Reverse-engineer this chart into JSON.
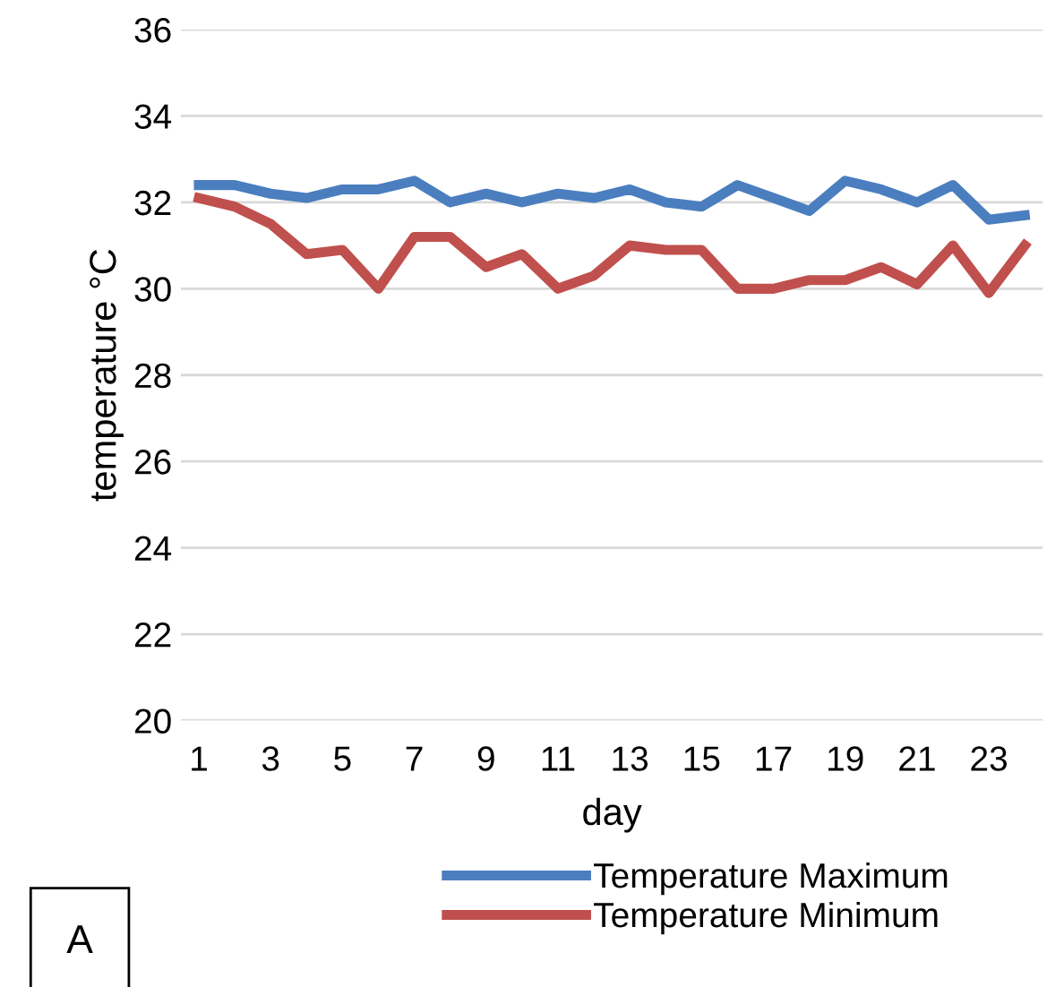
{
  "chart_data": {
    "type": "line",
    "categories": [
      "1",
      null,
      "3",
      null,
      "5",
      null,
      "7",
      null,
      "9",
      null,
      "11",
      null,
      "13",
      null,
      "15",
      null,
      "17",
      null,
      "19",
      null,
      "21",
      null,
      "23",
      null
    ],
    "series": [
      {
        "name": "Temperature Maximum",
        "color": "#4a7ebf",
        "values": [
          32.4,
          32.4,
          32.2,
          32.1,
          32.3,
          32.3,
          32.5,
          32.0,
          32.2,
          32.0,
          32.2,
          32.1,
          32.3,
          32.0,
          31.9,
          32.4,
          32.1,
          31.8,
          32.5,
          32.3,
          32.0,
          32.4,
          31.6,
          31.7
        ]
      },
      {
        "name": "Temperature Minimum",
        "color": "#c0504d",
        "values": [
          32.1,
          31.9,
          31.5,
          30.8,
          30.9,
          30.0,
          31.2,
          31.2,
          30.5,
          30.8,
          30.0,
          30.3,
          31.0,
          30.9,
          30.9,
          30.0,
          30.0,
          30.2,
          30.2,
          30.5,
          30.1,
          31.0,
          29.9,
          31.0
        ]
      }
    ],
    "xlabel": "day",
    "ylabel": "temperature °C",
    "ylim": [
      20,
      36
    ],
    "yticks": [
      20,
      22,
      24,
      26,
      28,
      30,
      32,
      34,
      36
    ],
    "grid": "y",
    "legend": "bottom",
    "marker": "none",
    "line_style": "solid",
    "annotations": [
      "A"
    ]
  }
}
